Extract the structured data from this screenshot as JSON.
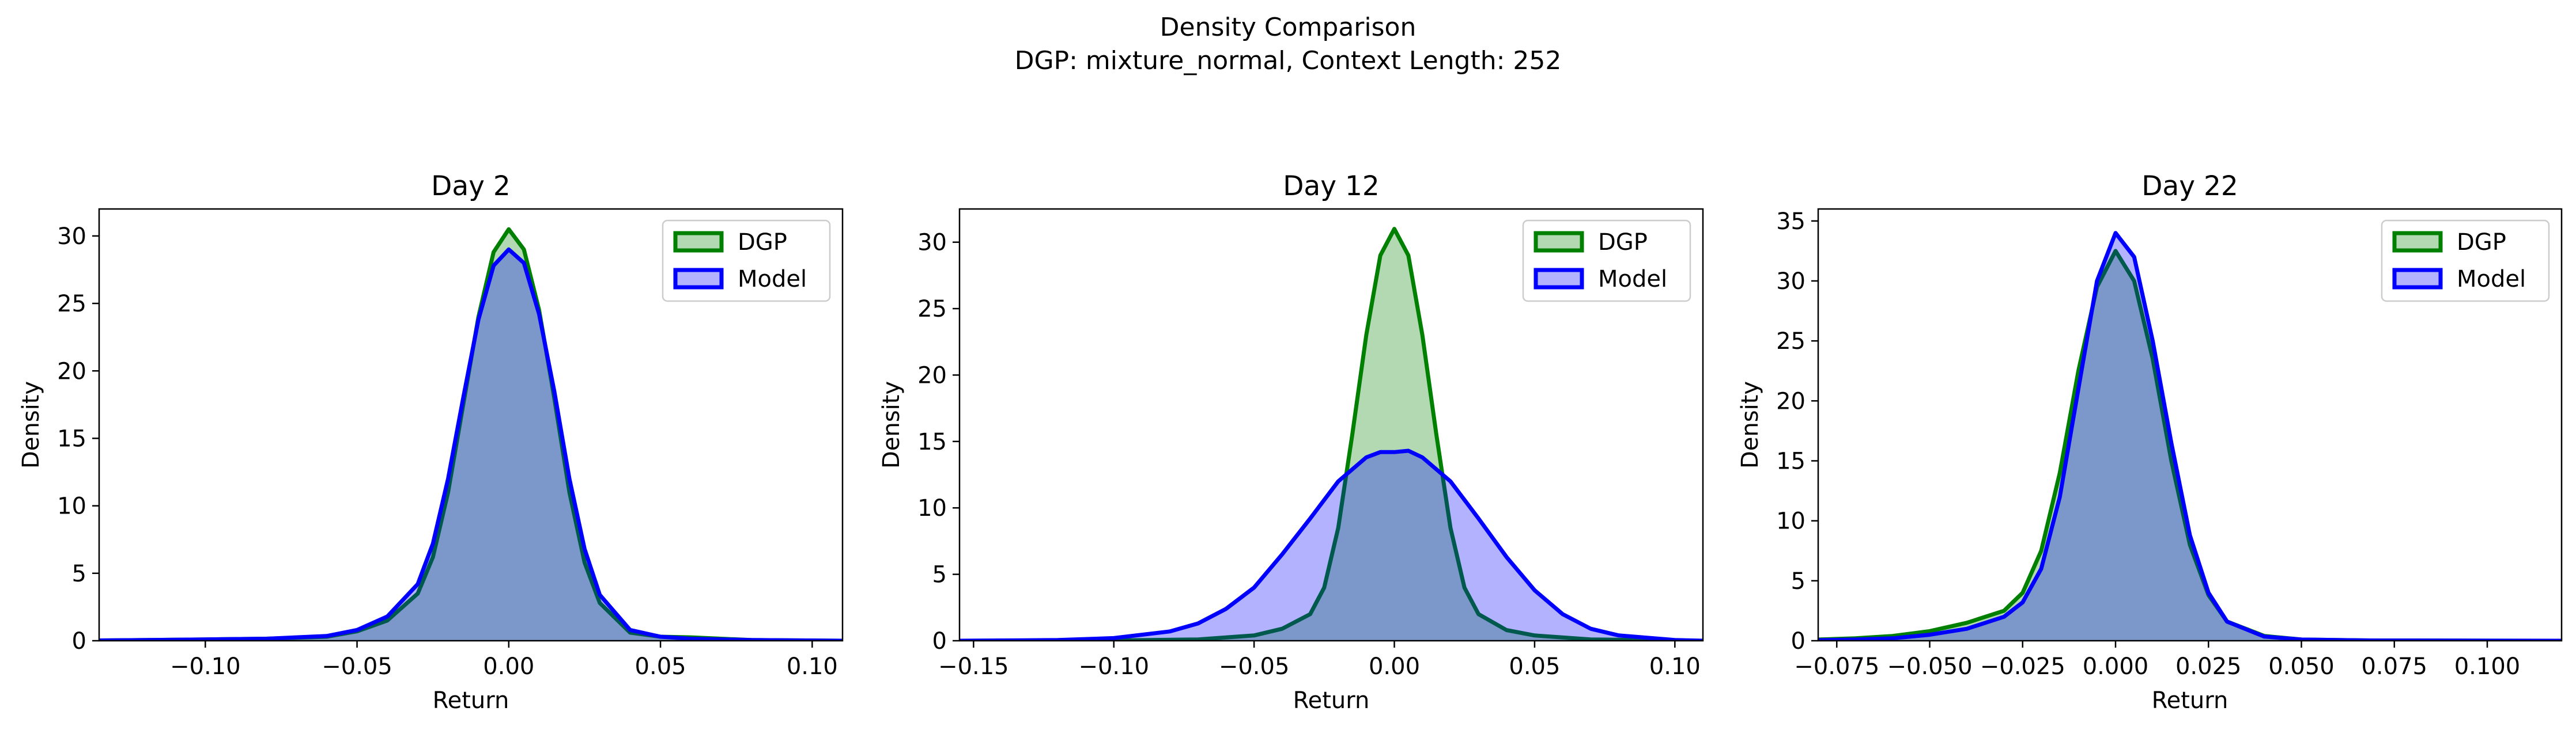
{
  "figure": {
    "title": "Density Comparison",
    "subtitle": "DGP: mixture_normal, Context Length: 252"
  },
  "colors": {
    "dgp_line": "#008000",
    "dgp_fill": "#008000",
    "model_line": "#0000ff",
    "model_fill": "#0000ff"
  },
  "chart_data": [
    {
      "type": "area",
      "title": "Day 2",
      "xlabel": "Return",
      "ylabel": "Density",
      "xlim": [
        -0.135,
        0.11
      ],
      "ylim": [
        0,
        32
      ],
      "xticks": [
        -0.1,
        -0.05,
        0.0,
        0.05,
        0.1
      ],
      "xtick_labels": [
        "−0.10",
        "−0.05",
        "0.00",
        "0.05",
        "0.10"
      ],
      "yticks": [
        0,
        5,
        10,
        15,
        20,
        25,
        30
      ],
      "ytick_labels": [
        "0",
        "5",
        "10",
        "15",
        "20",
        "25",
        "30"
      ],
      "legend": "top-right",
      "series": [
        {
          "name": "DGP",
          "x": [
            -0.135,
            -0.1,
            -0.08,
            -0.06,
            -0.05,
            -0.04,
            -0.03,
            -0.025,
            -0.02,
            -0.015,
            -0.01,
            -0.005,
            0.0,
            0.005,
            0.01,
            0.015,
            0.02,
            0.025,
            0.03,
            0.04,
            0.05,
            0.06,
            0.08,
            0.11
          ],
          "y": [
            0.02,
            0.1,
            0.15,
            0.3,
            0.7,
            1.5,
            3.5,
            6.2,
            11.0,
            17.5,
            24.0,
            28.8,
            30.5,
            29.0,
            24.5,
            18.0,
            11.0,
            5.8,
            2.8,
            0.6,
            0.3,
            0.25,
            0.05,
            0.0
          ]
        },
        {
          "name": "Model",
          "x": [
            -0.135,
            -0.1,
            -0.08,
            -0.06,
            -0.05,
            -0.04,
            -0.03,
            -0.025,
            -0.02,
            -0.015,
            -0.01,
            -0.005,
            0.0,
            0.005,
            0.01,
            0.015,
            0.02,
            0.025,
            0.03,
            0.04,
            0.05,
            0.06,
            0.08,
            0.11
          ],
          "y": [
            0.02,
            0.1,
            0.15,
            0.35,
            0.8,
            1.8,
            4.2,
            7.2,
            12.0,
            18.0,
            23.8,
            27.8,
            29.0,
            28.0,
            24.2,
            18.5,
            12.0,
            6.8,
            3.4,
            0.8,
            0.3,
            0.15,
            0.05,
            0.0
          ]
        }
      ]
    },
    {
      "type": "area",
      "title": "Day 12",
      "xlabel": "Return",
      "ylabel": "Density",
      "xlim": [
        -0.155,
        0.11
      ],
      "ylim": [
        0,
        32.5
      ],
      "xticks": [
        -0.15,
        -0.1,
        -0.05,
        0.0,
        0.05,
        0.1
      ],
      "xtick_labels": [
        "−0.15",
        "−0.10",
        "−0.05",
        "0.00",
        "0.05",
        "0.10"
      ],
      "yticks": [
        0,
        5,
        10,
        15,
        20,
        25,
        30
      ],
      "ytick_labels": [
        "0",
        "5",
        "10",
        "15",
        "20",
        "25",
        "30"
      ],
      "legend": "top-right",
      "series": [
        {
          "name": "DGP",
          "x": [
            -0.155,
            -0.1,
            -0.07,
            -0.05,
            -0.04,
            -0.03,
            -0.025,
            -0.02,
            -0.015,
            -0.01,
            -0.005,
            0.0,
            0.005,
            0.01,
            0.015,
            0.02,
            0.025,
            0.03,
            0.04,
            0.05,
            0.07,
            0.11
          ],
          "y": [
            0.0,
            0.02,
            0.1,
            0.4,
            0.9,
            2.0,
            4.0,
            8.5,
            15.5,
            23.0,
            29.0,
            31.0,
            29.0,
            23.0,
            15.5,
            8.5,
            4.0,
            2.0,
            0.8,
            0.4,
            0.1,
            0.0
          ]
        },
        {
          "name": "Model",
          "x": [
            -0.155,
            -0.12,
            -0.1,
            -0.08,
            -0.07,
            -0.06,
            -0.05,
            -0.04,
            -0.03,
            -0.02,
            -0.01,
            -0.005,
            0.0,
            0.005,
            0.01,
            0.02,
            0.03,
            0.04,
            0.05,
            0.06,
            0.07,
            0.08,
            0.1,
            0.11
          ],
          "y": [
            0.0,
            0.05,
            0.2,
            0.7,
            1.3,
            2.4,
            4.0,
            6.5,
            9.2,
            12.0,
            13.8,
            14.2,
            14.2,
            14.3,
            13.8,
            12.0,
            9.2,
            6.3,
            3.8,
            2.0,
            0.9,
            0.4,
            0.05,
            0.0
          ]
        }
      ]
    },
    {
      "type": "area",
      "title": "Day 22",
      "xlabel": "Return",
      "ylabel": "Density",
      "xlim": [
        -0.08,
        0.12
      ],
      "ylim": [
        0,
        36
      ],
      "xticks": [
        -0.075,
        -0.05,
        -0.025,
        0.0,
        0.025,
        0.05,
        0.075,
        0.1
      ],
      "xtick_labels": [
        "−0.075",
        "−0.050",
        "−0.025",
        "0.000",
        "0.025",
        "0.050",
        "0.075",
        "0.100"
      ],
      "yticks": [
        0,
        5,
        10,
        15,
        20,
        25,
        30,
        35
      ],
      "ytick_labels": [
        "0",
        "5",
        "10",
        "15",
        "20",
        "25",
        "30",
        "35"
      ],
      "legend": "top-right",
      "series": [
        {
          "name": "DGP",
          "x": [
            -0.08,
            -0.07,
            -0.06,
            -0.05,
            -0.04,
            -0.03,
            -0.025,
            -0.02,
            -0.015,
            -0.01,
            -0.005,
            0.0,
            0.005,
            0.01,
            0.015,
            0.02,
            0.025,
            0.03,
            0.04,
            0.05,
            0.07,
            0.12
          ],
          "y": [
            0.1,
            0.2,
            0.4,
            0.8,
            1.5,
            2.5,
            4.0,
            7.5,
            14.0,
            22.5,
            29.5,
            32.5,
            30.0,
            23.5,
            15.0,
            8.0,
            3.8,
            1.6,
            0.4,
            0.1,
            0.02,
            0.0
          ]
        },
        {
          "name": "Model",
          "x": [
            -0.08,
            -0.07,
            -0.06,
            -0.05,
            -0.04,
            -0.03,
            -0.025,
            -0.02,
            -0.015,
            -0.01,
            -0.005,
            0.0,
            0.005,
            0.01,
            0.015,
            0.02,
            0.025,
            0.03,
            0.04,
            0.05,
            0.07,
            0.12
          ],
          "y": [
            0.05,
            0.1,
            0.2,
            0.5,
            1.0,
            2.0,
            3.2,
            6.0,
            12.0,
            21.0,
            30.0,
            34.0,
            32.0,
            25.0,
            16.5,
            8.8,
            4.0,
            1.6,
            0.35,
            0.1,
            0.02,
            0.0
          ]
        }
      ]
    }
  ]
}
